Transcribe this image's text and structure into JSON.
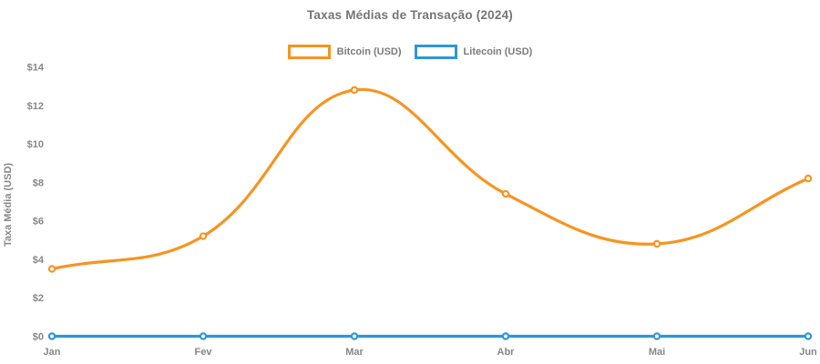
{
  "chart_data": {
    "type": "line",
    "title": "Taxas Médias de Transação (2024)",
    "xlabel": "",
    "ylabel": "Taxa Média (USD)",
    "categories": [
      "Jan",
      "Fev",
      "Mar",
      "Abr",
      "Mai",
      "Jun"
    ],
    "series": [
      {
        "name": "Bitcoin (USD)",
        "color": "#f79421",
        "values": [
          3.5,
          5.2,
          12.8,
          7.4,
          4.8,
          8.2
        ]
      },
      {
        "name": "Litecoin (USD)",
        "color": "#2f96d8",
        "values": [
          0,
          0,
          0,
          0,
          0,
          0
        ]
      }
    ],
    "ylim": [
      0,
      14
    ],
    "ytick_step": 2,
    "ytick_prefix": "$",
    "grid": false,
    "legend_position": "top",
    "line_tension": 0.4,
    "title_color": "#757575",
    "tick_color": "#878787",
    "axis_title_color": "#878787"
  }
}
